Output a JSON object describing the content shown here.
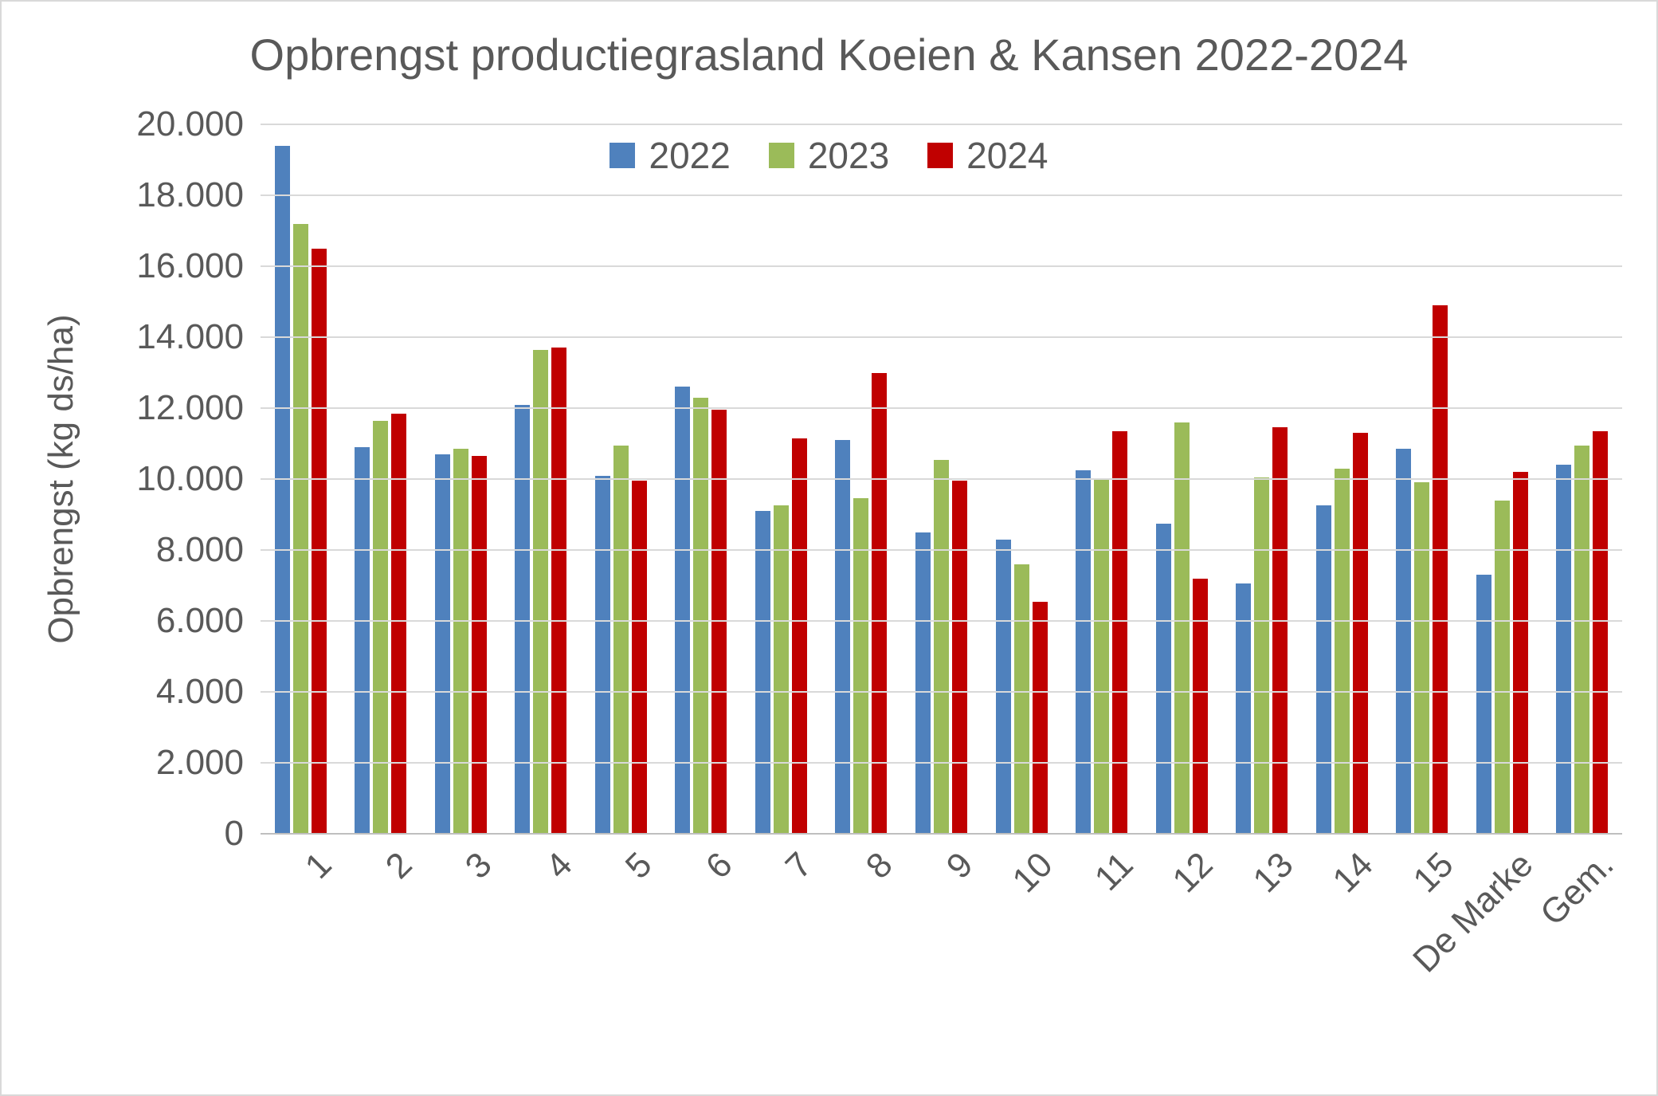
{
  "chart_data": {
    "type": "bar",
    "title": "Opbrengst productiegrasland Koeien & Kansen 2022-2024",
    "ylabel": "Opbrengst (kg ds/ha)",
    "xlabel": "",
    "categories": [
      "1",
      "2",
      "3",
      "4",
      "5",
      "6",
      "7",
      "8",
      "9",
      "10",
      "11",
      "12",
      "13",
      "14",
      "15",
      "De Marke",
      "Gem."
    ],
    "series": [
      {
        "name": "2022",
        "color": "#4F81BD",
        "values": [
          19400,
          10900,
          10700,
          12100,
          10100,
          12600,
          9100,
          11100,
          8500,
          8300,
          10250,
          8750,
          7050,
          9250,
          10850,
          7300,
          10400
        ]
      },
      {
        "name": "2023",
        "color": "#9BBB59",
        "values": [
          17200,
          11650,
          10850,
          13650,
          10950,
          12300,
          9250,
          9450,
          10550,
          7600,
          10000,
          11600,
          10050,
          10300,
          9900,
          9400,
          10950
        ]
      },
      {
        "name": "2024",
        "color": "#C00000",
        "values": [
          16500,
          11850,
          10650,
          13700,
          9950,
          11950,
          11150,
          13000,
          9950,
          6550,
          11350,
          7200,
          11450,
          11300,
          14900,
          10200,
          11350
        ]
      }
    ],
    "ylim": [
      0,
      20000
    ],
    "ytick_step": 2000,
    "ytick_labels": [
      "20.000",
      "18.000",
      "16.000",
      "14.000",
      "12.000",
      "10.000",
      "8.000",
      "6.000",
      "4.000",
      "2.000",
      "0"
    ],
    "grid": "horizontal",
    "legend_position": "top-center"
  },
  "colors": {
    "text": "#595959",
    "gridline": "#D9D9D9",
    "axis_line": "#BFBFBF",
    "background": "#FFFFFF",
    "border": "#D9D9D9"
  }
}
